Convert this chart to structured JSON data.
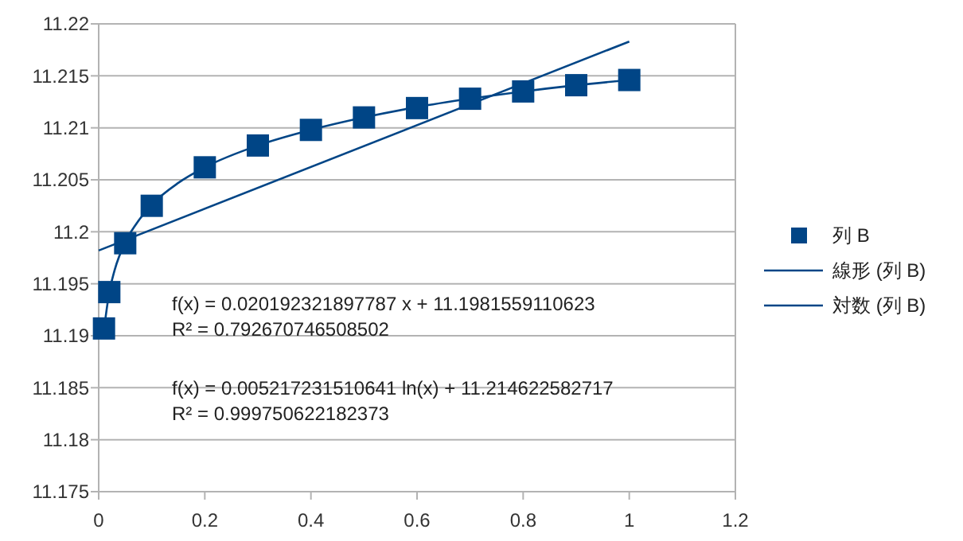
{
  "chart_data": {
    "type": "scatter",
    "series": [
      {
        "name": "列 B",
        "type": "scatter",
        "color": "#004586",
        "marker": "square",
        "x": [
          0.01,
          0.02,
          0.05,
          0.1,
          0.2,
          0.3,
          0.4,
          0.5,
          0.6,
          0.7,
          0.8,
          0.9,
          1
        ],
        "values": [
          11.1907,
          11.1942,
          11.1989,
          11.2025,
          11.2062,
          11.2083,
          11.2098,
          11.211,
          11.2119,
          11.2128,
          11.2135,
          11.2141,
          11.2146
        ]
      },
      {
        "name": "線形 (列 B)",
        "type": "line",
        "color": "#004586",
        "x": [
          0,
          1
        ],
        "values": [
          11.1982,
          11.2183
        ]
      },
      {
        "name": "対数 (列 B)",
        "type": "line",
        "color": "#004586",
        "x": [
          0.01,
          0.02,
          0.03,
          0.05,
          0.07,
          0.1,
          0.15,
          0.2,
          0.3,
          0.4,
          0.5,
          0.6,
          0.7,
          0.8,
          0.9,
          1
        ],
        "values": [
          11.1906,
          11.1942,
          11.1963,
          11.199,
          11.2007,
          11.2026,
          11.2047,
          11.2062,
          11.2083,
          11.2098,
          11.211,
          11.212,
          11.2128,
          11.2135,
          11.2141,
          11.2146
        ]
      }
    ],
    "xlim": [
      0,
      1.2
    ],
    "xticks": [
      0,
      0.2,
      0.4,
      0.6,
      0.8,
      1,
      1.2
    ],
    "ylim": [
      11.175,
      11.22
    ],
    "yticks": [
      11.175,
      11.18,
      11.185,
      11.19,
      11.195,
      11.2,
      11.205,
      11.21,
      11.215,
      11.22
    ],
    "grid": "y",
    "legend": "right",
    "annotations": [
      "f(x) = 0.020192321897787 x + 11.1981559110623",
      "R² = 0.792670746508502",
      "f(x) = 0.005217231510641 ln(x) + 11.214622582717",
      "R² = 0.999750622182373"
    ]
  }
}
